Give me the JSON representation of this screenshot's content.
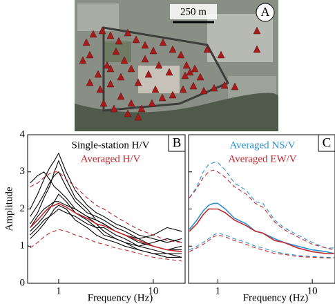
{
  "map": {
    "scale_bar": "250 m",
    "label": "A"
  },
  "chart_data": [
    {
      "type": "line",
      "panel_label": "B",
      "y_label": "Amplitude",
      "x_label": "Frequency (Hz)",
      "xscale": "log",
      "xlim": [
        0.47,
        21.7
      ],
      "ylim": [
        0,
        4
      ],
      "xticks": [
        1,
        10
      ],
      "yticks": [
        0,
        1,
        2,
        3,
        4
      ],
      "x": [
        0.5,
        0.6,
        0.7,
        0.8,
        0.9,
        1,
        1.2,
        1.5,
        2,
        2.5,
        3,
        4,
        5,
        7,
        10,
        14,
        20
      ],
      "series": [
        {
          "name": "Single-station H/V",
          "color": "#000000",
          "dash": false,
          "values": [
            1.6,
            1.9,
            2.3,
            2.6,
            3.0,
            3.3,
            2.8,
            2.3,
            2.0,
            1.7,
            1.6,
            1.4,
            1.3,
            1.1,
            1.0,
            0.9,
            0.9
          ]
        },
        {
          "color": "#000000",
          "dash": false,
          "values": [
            1.4,
            1.6,
            1.8,
            2.0,
            2.2,
            2.4,
            2.2,
            1.9,
            1.7,
            1.5,
            1.5,
            1.3,
            1.2,
            1.0,
            0.9,
            0.8,
            0.8
          ]
        },
        {
          "color": "#000000",
          "dash": false,
          "values": [
            2.7,
            2.9,
            3.0,
            2.8,
            2.6,
            2.5,
            2.3,
            2.0,
            1.8,
            1.6,
            1.4,
            1.2,
            1.1,
            1.0,
            1.1,
            1.2,
            1.1
          ]
        },
        {
          "color": "#000000",
          "dash": false,
          "values": [
            1.3,
            1.5,
            1.7,
            1.8,
            1.9,
            2.0,
            1.9,
            1.8,
            1.6,
            1.5,
            1.3,
            1.2,
            1.1,
            0.9,
            0.8,
            0.7,
            0.7
          ]
        },
        {
          "color": "#000000",
          "dash": false,
          "values": [
            1.8,
            2.1,
            2.4,
            2.7,
            2.9,
            3.0,
            2.6,
            2.2,
            1.9,
            1.8,
            1.7,
            1.5,
            1.4,
            1.2,
            1.3,
            1.5,
            1.4
          ]
        },
        {
          "color": "#000000",
          "dash": false,
          "values": [
            1.5,
            1.8,
            2.0,
            2.1,
            2.2,
            2.2,
            2.1,
            2.0,
            1.8,
            1.7,
            1.6,
            1.4,
            1.3,
            1.2,
            1.0,
            0.9,
            1.0
          ]
        },
        {
          "color": "#000000",
          "dash": false,
          "values": [
            1.2,
            1.4,
            1.6,
            1.8,
            2.0,
            2.1,
            2.0,
            1.7,
            1.5,
            1.3,
            1.2,
            1.1,
            1.0,
            0.9,
            0.8,
            0.8,
            0.7
          ]
        },
        {
          "color": "#000000",
          "dash": false,
          "values": [
            2.0,
            2.4,
            2.8,
            3.1,
            3.3,
            3.5,
            3.0,
            2.5,
            2.1,
            1.9,
            1.8,
            1.6,
            1.5,
            1.3,
            1.2,
            1.1,
            1.2
          ]
        },
        {
          "name": "Averaged H/V",
          "color": "#c0282d",
          "dash": false,
          "values": [
            1.5,
            1.7,
            1.9,
            2.05,
            2.1,
            2.15,
            2.05,
            1.9,
            1.75,
            1.6,
            1.55,
            1.4,
            1.3,
            1.15,
            1.0,
            0.9,
            0.85
          ]
        },
        {
          "color": "#c0282d",
          "dash": true,
          "values": [
            2.6,
            2.7,
            2.85,
            2.95,
            3.0,
            3.0,
            2.8,
            2.6,
            2.3,
            2.1,
            2.0,
            1.8,
            1.65,
            1.45,
            1.3,
            1.15,
            1.1
          ]
        },
        {
          "color": "#c0282d",
          "dash": true,
          "values": [
            0.95,
            1.1,
            1.25,
            1.35,
            1.4,
            1.45,
            1.4,
            1.3,
            1.2,
            1.1,
            1.05,
            0.95,
            0.9,
            0.8,
            0.7,
            0.65,
            0.6
          ]
        }
      ]
    },
    {
      "type": "line",
      "panel_label": "C",
      "x_label": "Frequency (Hz)",
      "xscale": "log",
      "xlim": [
        0.49,
        17.4
      ],
      "ylim": [
        0,
        4
      ],
      "xticks": [
        1,
        10
      ],
      "yticks": [
        0,
        1,
        2,
        3,
        4
      ],
      "ytick_labels": false,
      "x": [
        0.5,
        0.6,
        0.7,
        0.8,
        0.9,
        1,
        1.2,
        1.5,
        2,
        2.5,
        3,
        4,
        5,
        7,
        10,
        14,
        17
      ],
      "series": [
        {
          "name": "Averaged NS/V",
          "color": "#2a8fd4",
          "dash": false,
          "values": [
            1.45,
            1.7,
            1.95,
            2.1,
            2.15,
            2.15,
            2.0,
            1.75,
            1.6,
            1.4,
            1.35,
            1.2,
            1.1,
            1.0,
            0.9,
            0.85,
            0.8
          ]
        },
        {
          "name": "Averaged EW/V",
          "color": "#c0282d",
          "dash": false,
          "values": [
            1.4,
            1.6,
            1.85,
            2.0,
            2.0,
            2.0,
            1.9,
            1.7,
            1.55,
            1.4,
            1.35,
            1.15,
            1.1,
            0.95,
            0.85,
            0.8,
            0.8
          ]
        },
        {
          "color": "#2a8fd4",
          "dash": true,
          "values": [
            2.3,
            2.6,
            3.0,
            3.2,
            3.25,
            3.25,
            3.05,
            2.7,
            2.5,
            2.2,
            2.15,
            1.7,
            1.5,
            1.3,
            1.1,
            0.95,
            0.95
          ]
        },
        {
          "color": "#c0282d",
          "dash": true,
          "values": [
            2.3,
            2.55,
            2.85,
            3.0,
            3.05,
            3.0,
            2.85,
            2.6,
            2.4,
            2.15,
            2.05,
            1.65,
            1.45,
            1.25,
            1.05,
            0.95,
            0.9
          ]
        },
        {
          "color": "#2a8fd4",
          "dash": true,
          "values": [
            0.9,
            1.0,
            1.1,
            1.2,
            1.3,
            1.35,
            1.3,
            1.2,
            1.1,
            1.0,
            0.95,
            0.85,
            0.8,
            0.75,
            0.72,
            0.7,
            0.7
          ]
        },
        {
          "color": "#c0282d",
          "dash": true,
          "values": [
            0.85,
            0.95,
            1.05,
            1.15,
            1.25,
            1.3,
            1.25,
            1.15,
            1.05,
            0.95,
            0.9,
            0.8,
            0.78,
            0.72,
            0.7,
            0.68,
            0.68
          ]
        }
      ]
    }
  ]
}
